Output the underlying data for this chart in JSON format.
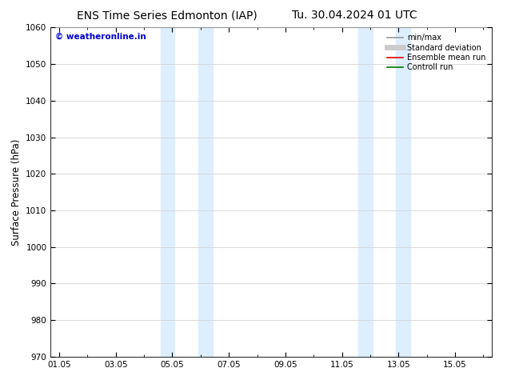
{
  "title_left": "ENS Time Series Edmonton (IAP)",
  "title_right": "Tu. 30.04.2024 01 UTC",
  "ylabel": "Surface Pressure (hPa)",
  "ylim": [
    970,
    1060
  ],
  "yticks": [
    970,
    980,
    990,
    1000,
    1010,
    1020,
    1030,
    1040,
    1050,
    1060
  ],
  "xtick_labels": [
    "01.05",
    "03.05",
    "05.05",
    "07.05",
    "09.05",
    "11.05",
    "13.05",
    "15.05"
  ],
  "xtick_positions": [
    0,
    2,
    4,
    6,
    8,
    10,
    12,
    14
  ],
  "xlim": [
    -0.3,
    15.3
  ],
  "shaded_bands": [
    {
      "x_start": 3.58,
      "x_end": 4.08
    },
    {
      "x_start": 4.92,
      "x_end": 5.42
    },
    {
      "x_start": 10.58,
      "x_end": 11.08
    },
    {
      "x_start": 11.92,
      "x_end": 12.42
    }
  ],
  "shade_color": "#ddeeff",
  "watermark_text": "© weatheronline.in",
  "watermark_color": "#0000cc",
  "legend_entries": [
    {
      "label": "min/max",
      "color": "#999999",
      "lw": 1.2,
      "ls": "-"
    },
    {
      "label": "Standard deviation",
      "color": "#cccccc",
      "lw": 5,
      "ls": "-"
    },
    {
      "label": "Ensemble mean run",
      "color": "#dd0000",
      "lw": 1.2,
      "ls": "-"
    },
    {
      "label": "Controll run",
      "color": "#007700",
      "lw": 1.2,
      "ls": "-"
    }
  ],
  "grid_color": "#cccccc",
  "bg_color": "#ffffff",
  "title_fontsize": 10,
  "label_fontsize": 8.5,
  "tick_fontsize": 7.5,
  "legend_fontsize": 7
}
